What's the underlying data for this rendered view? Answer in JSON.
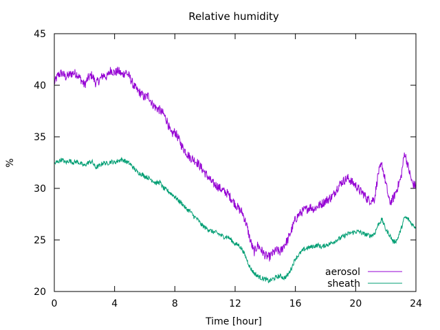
{
  "chart_data": {
    "type": "line",
    "title": "Relative humidity",
    "xlabel": "Time [hour]",
    "ylabel": "%",
    "xlim": [
      0,
      24
    ],
    "ylim": [
      20,
      45
    ],
    "xticks": [
      0,
      4,
      8,
      12,
      16,
      20,
      24
    ],
    "yticks": [
      20,
      25,
      30,
      35,
      40,
      45
    ],
    "grid": false,
    "legend_position": "bottom-right",
    "series": [
      {
        "name": "aerosol",
        "color": "#9400d3",
        "x": [
          0,
          0.25,
          0.5,
          0.75,
          1,
          1.25,
          1.5,
          1.75,
          2,
          2.25,
          2.5,
          2.75,
          3,
          3.25,
          3.5,
          3.75,
          4,
          4.25,
          4.5,
          4.75,
          5,
          5.25,
          5.5,
          5.75,
          6,
          6.25,
          6.5,
          6.75,
          7,
          7.25,
          7.5,
          7.75,
          8,
          8.25,
          8.5,
          8.75,
          9,
          9.25,
          9.5,
          9.75,
          10,
          10.25,
          10.5,
          10.75,
          11,
          11.25,
          11.5,
          11.75,
          12,
          12.25,
          12.5,
          12.75,
          13,
          13.25,
          13.5,
          13.75,
          14,
          14.25,
          14.5,
          14.75,
          15,
          15.25,
          15.5,
          15.75,
          16,
          16.25,
          16.5,
          16.75,
          17,
          17.25,
          17.5,
          17.75,
          18,
          18.25,
          18.5,
          18.75,
          19,
          19.25,
          19.5,
          19.75,
          20,
          20.25,
          20.5,
          20.75,
          21,
          21.25,
          21.5,
          21.75,
          22,
          22.25,
          22.5,
          22.75,
          23,
          23.25,
          23.5,
          23.75,
          24
        ],
        "y": [
          40.2,
          41.0,
          41.2,
          40.8,
          41.0,
          41.2,
          41.1,
          40.6,
          40.0,
          40.7,
          41.0,
          40.2,
          40.5,
          41.0,
          40.8,
          41.5,
          41.2,
          41.4,
          41.0,
          41.3,
          40.8,
          40.0,
          39.5,
          39.2,
          38.8,
          39.0,
          38.2,
          37.8,
          37.6,
          37.2,
          36.5,
          35.2,
          35.5,
          34.8,
          34.0,
          33.5,
          33.0,
          32.8,
          32.5,
          32.0,
          31.5,
          31.0,
          30.5,
          30.3,
          30.0,
          29.7,
          29.5,
          29.0,
          28.5,
          28.0,
          27.6,
          26.5,
          25.0,
          23.8,
          24.5,
          24.0,
          23.5,
          23.3,
          23.7,
          24.0,
          23.8,
          24.5,
          25.0,
          26.0,
          27.0,
          27.5,
          27.8,
          28.0,
          28.2,
          28.0,
          28.3,
          28.5,
          28.8,
          29.0,
          29.3,
          30.0,
          30.5,
          30.8,
          31.0,
          30.6,
          30.3,
          29.8,
          29.5,
          29.0,
          28.8,
          29.0,
          31.5,
          32.3,
          30.5,
          28.6,
          29.0,
          30.0,
          31.0,
          33.5,
          32.0,
          30.5,
          30.2
        ],
        "y_noise": 0.45
      },
      {
        "name": "sheath",
        "color": "#009e73",
        "x": [
          0,
          0.25,
          0.5,
          0.75,
          1,
          1.25,
          1.5,
          1.75,
          2,
          2.25,
          2.5,
          2.75,
          3,
          3.25,
          3.5,
          3.75,
          4,
          4.25,
          4.5,
          4.75,
          5,
          5.25,
          5.5,
          5.75,
          6,
          6.25,
          6.5,
          6.75,
          7,
          7.25,
          7.5,
          7.75,
          8,
          8.25,
          8.5,
          8.75,
          9,
          9.25,
          9.5,
          9.75,
          10,
          10.25,
          10.5,
          10.75,
          11,
          11.25,
          11.5,
          11.75,
          12,
          12.25,
          12.5,
          12.75,
          13,
          13.25,
          13.5,
          13.75,
          14,
          14.25,
          14.5,
          14.75,
          15,
          15.25,
          15.5,
          15.75,
          16,
          16.25,
          16.5,
          16.75,
          17,
          17.25,
          17.5,
          17.75,
          18,
          18.25,
          18.5,
          18.75,
          19,
          19.25,
          19.5,
          19.75,
          20,
          20.25,
          20.5,
          20.75,
          21,
          21.25,
          21.5,
          21.75,
          22,
          22.25,
          22.5,
          22.75,
          23,
          23.25,
          23.5,
          23.75,
          24
        ],
        "y": [
          32.4,
          32.6,
          32.8,
          32.5,
          32.7,
          32.5,
          32.6,
          32.4,
          32.2,
          32.5,
          32.6,
          32.0,
          32.2,
          32.5,
          32.4,
          32.6,
          32.5,
          32.7,
          32.8,
          32.6,
          32.4,
          32.0,
          31.6,
          31.4,
          31.2,
          31.0,
          30.8,
          30.5,
          30.6,
          30.0,
          29.8,
          29.5,
          29.2,
          28.8,
          28.5,
          28.0,
          27.8,
          27.3,
          27.0,
          26.5,
          26.2,
          26.0,
          25.8,
          25.7,
          25.5,
          25.3,
          25.3,
          25.0,
          24.6,
          24.5,
          24.0,
          23.2,
          22.3,
          21.8,
          21.5,
          21.3,
          21.2,
          21.0,
          21.2,
          21.4,
          21.5,
          21.3,
          21.6,
          22.3,
          23.2,
          23.6,
          24.0,
          24.2,
          24.3,
          24.4,
          24.5,
          24.3,
          24.5,
          24.6,
          24.8,
          25.0,
          25.2,
          25.4,
          25.6,
          25.7,
          25.8,
          25.8,
          25.6,
          25.5,
          25.4,
          25.6,
          26.5,
          27.0,
          26.0,
          25.5,
          24.8,
          25.0,
          26.0,
          27.2,
          27.0,
          26.5,
          26.2
        ],
        "y_noise": 0.22
      }
    ]
  }
}
